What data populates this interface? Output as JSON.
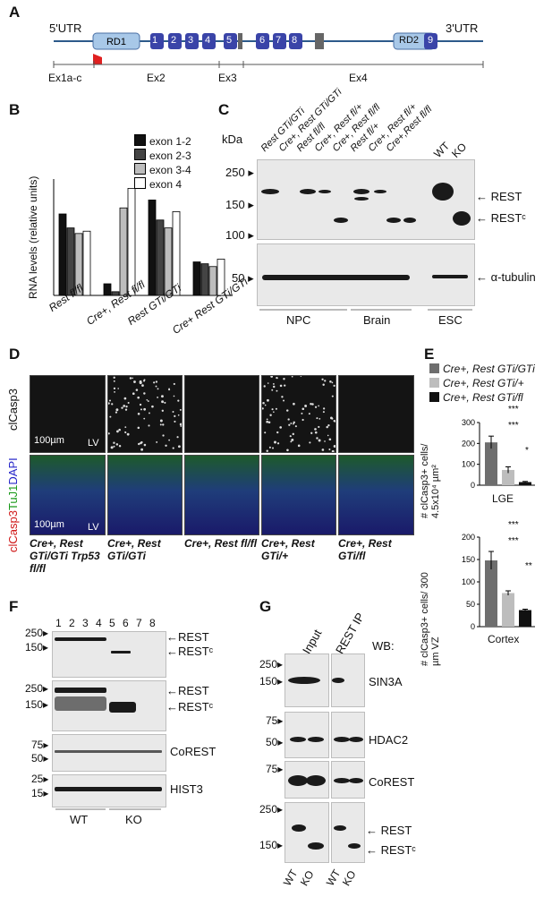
{
  "panelA": {
    "label": "A",
    "utr5": "5'UTR",
    "utr3": "3'UTR",
    "rd1": "RD1",
    "rd2": "RD2",
    "exons": [
      "1",
      "2",
      "3",
      "4",
      "5",
      "6",
      "7",
      "8",
      "9"
    ],
    "exon_labels": [
      "Ex1a-c",
      "Ex2",
      "Ex3",
      "Ex4"
    ]
  },
  "panelB": {
    "label": "B",
    "ylabel": "RNA levels (relative units)",
    "legend": [
      "exon 1-2",
      "exon 2-3",
      "exon 3-4",
      "exon 4"
    ],
    "groups": [
      "Rest fl/fl",
      "Cre+, Rest fl/fl",
      "Rest GTi/GTi",
      "Cre+ Rest GTi/GTi"
    ]
  },
  "panelC": {
    "label": "C",
    "kda": "kDa",
    "lanes": [
      "Rest GTi/GTi",
      "Cre+, Rest GTi/GTi",
      "Rest fl/fl",
      "Cre+, Rest fl/+",
      "Cre+, Rest fl/fl",
      "Rest fl/+",
      "Cre+, Rest fl/+",
      "Cre+,Rest fl/fl",
      "WT",
      "KO"
    ],
    "markers_top": [
      "250",
      "150",
      "100"
    ],
    "markers_bottom": [
      "50"
    ],
    "bands": [
      "REST",
      "RESTᶜ",
      "α-tubulin"
    ],
    "groups": [
      "NPC",
      "Brain",
      "ESC"
    ]
  },
  "panelD": {
    "label": "D",
    "row1": "clCasp3",
    "row2_parts": [
      "clCasp3",
      "TuJ1",
      "DAPI"
    ],
    "scale": "100µm",
    "lv": "LV",
    "cols": [
      "Cre+, Rest GTi/GTi Trp53 fl/fl",
      "Cre+, Rest GTi/GTi",
      "Cre+, Rest fl/fl",
      "Cre+, Rest GTi/+",
      "Cre+, Rest GTi/fl"
    ]
  },
  "panelE": {
    "label": "E",
    "legend": [
      "Cre+, Rest GTi/GTi",
      "Cre+, Rest GTi/+",
      "Cre+, Rest GTi/fl"
    ],
    "ylabel_top": "# clCasp3+ cells/ 4.5x10⁴ µm²",
    "ylabel_bottom": "# clCasp3+ cells/ 300 µm VZ",
    "xlabel_top": "LGE",
    "xlabel_bottom": "Cortex",
    "sig": [
      "***",
      "***",
      "*",
      "***",
      "***",
      "**"
    ]
  },
  "panelF": {
    "label": "F",
    "lanes": [
      "1",
      "2",
      "3",
      "4",
      "5",
      "6",
      "7",
      "8"
    ],
    "markers1": [
      "250",
      "150"
    ],
    "markers2": [
      "250",
      "150"
    ],
    "markers3": [
      "75",
      "50"
    ],
    "markers4": [
      "25",
      "15"
    ],
    "bands": [
      "REST",
      "RESTᶜ",
      "REST",
      "RESTᶜ",
      "CoREST",
      "HIST3"
    ],
    "groups": [
      "WT",
      "KO"
    ]
  },
  "panelG": {
    "label": "G",
    "cols": [
      "Input",
      "REST IP"
    ],
    "wb": "WB:",
    "markers": [
      "250",
      "150",
      "75",
      "50",
      "75",
      "250",
      "150"
    ],
    "bands": [
      "SIN3A",
      "HDAC2",
      "CoREST",
      "REST",
      "RESTᶜ"
    ],
    "lanes": [
      "WT",
      "KO",
      "WT",
      "KO"
    ]
  },
  "chart_data": [
    {
      "type": "bar",
      "panel": "B",
      "ylabel": "RNA levels (relative units)",
      "categories": [
        "Rest fl/fl",
        "Cre+, Rest fl/fl",
        "Rest GTi/GTi",
        "Cre+ Rest GTi/GTi"
      ],
      "series": [
        {
          "name": "exon 1-2",
          "values": [
            1.75,
            0.25,
            2.05,
            0.72
          ]
        },
        {
          "name": "exon 2-3",
          "values": [
            1.45,
            0.08,
            1.62,
            0.68
          ]
        },
        {
          "name": "exon 3-4",
          "values": [
            1.33,
            1.88,
            1.45,
            0.62
          ]
        },
        {
          "name": "exon 4",
          "values": [
            1.38,
            2.3,
            1.8,
            0.78
          ]
        }
      ],
      "ylim": [
        0,
        2.5
      ],
      "colors": [
        "#111111",
        "#444444",
        "#bdbdbd",
        "#ffffff"
      ]
    },
    {
      "type": "bar",
      "panel": "E-top",
      "xlabel": "LGE",
      "yticks": [
        0,
        100,
        200,
        300
      ],
      "ylim": [
        0,
        300
      ],
      "series": [
        {
          "name": "Cre+, Rest GTi/GTi",
          "value": 205,
          "err": 30
        },
        {
          "name": "Cre+, Rest GTi/+",
          "value": 73,
          "err": 15
        },
        {
          "name": "Cre+, Rest GTi/fl",
          "value": 15,
          "err": 3
        }
      ],
      "colors": [
        "#6e6e6e",
        "#bdbdbd",
        "#111111"
      ]
    },
    {
      "type": "bar",
      "panel": "E-bottom",
      "xlabel": "Cortex",
      "yticks": [
        0,
        50,
        100,
        150,
        200
      ],
      "ylim": [
        0,
        200
      ],
      "series": [
        {
          "name": "Cre+, Rest GTi/GTi",
          "value": 148,
          "err": 20
        },
        {
          "name": "Cre+, Rest GTi/+",
          "value": 75,
          "err": 5
        },
        {
          "name": "Cre+, Rest GTi/fl",
          "value": 37,
          "err": 2
        }
      ],
      "colors": [
        "#6e6e6e",
        "#bdbdbd",
        "#111111"
      ]
    }
  ]
}
